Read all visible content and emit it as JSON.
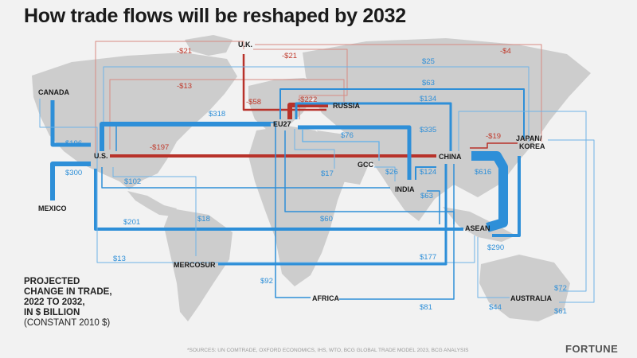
{
  "title": "How trade flows will be reshaped by 2032",
  "legend": {
    "line1": "PROJECTED",
    "line2": "CHANGE IN TRADE,",
    "line3": "2022 TO 2032,",
    "line4": "IN $ BILLION",
    "line5": "(CONSTANT 2010 $)"
  },
  "source": "*SOURCES: UN COMTRADE, OXFORD ECONOMICS, IHS, WTO, BCG GLOBAL TRADE MODEL 2023, BCG ANALYSIS",
  "brand": "FORTUNE",
  "colors": {
    "growth": "#2e8fd8",
    "decline": "#b8322a"
  },
  "nodes": {
    "canada": "CANADA",
    "us": "U.S.",
    "mexico": "MEXICO",
    "uk": "U.K.",
    "eu27": "EU27",
    "russia": "RUSSIA",
    "gcc": "GCC",
    "india": "INDIA",
    "china": "CHINA",
    "japan_korea_1": "JAPAN/",
    "japan_korea_2": "KOREA",
    "asean": "ASEAN",
    "mercosur": "MERCOSUR",
    "africa": "AFRICA",
    "australia": "AUSTRALIA"
  },
  "flows": [
    {
      "from": "U.K.",
      "to": "U.S.",
      "value": "-$21"
    },
    {
      "from": "U.K.",
      "to": "EU27",
      "value": "-$21"
    },
    {
      "from": "U.K.",
      "to": "JAPAN/KOREA",
      "value": "-$4"
    },
    {
      "from": "U.S.",
      "to": "JAPAN/KOREA",
      "value": "$25"
    },
    {
      "from": "U.S.",
      "to": "RUSSIA",
      "value": "-$13"
    },
    {
      "from": "U.K.",
      "to": "RUSSIA",
      "value": "-$58"
    },
    {
      "from": "EU27",
      "to": "RUSSIA",
      "value": "-$222"
    },
    {
      "from": "EU27",
      "to": "JAPAN/KOREA",
      "value": "$63"
    },
    {
      "from": "EU27",
      "to": "CHINA",
      "value": "$134"
    },
    {
      "from": "U.S.",
      "to": "EU27",
      "value": "$318"
    },
    {
      "from": "EU27",
      "to": "INDIA",
      "value": "$335"
    },
    {
      "from": "CANADA",
      "to": "U.S.",
      "value": "$196"
    },
    {
      "from": "MEXICO",
      "to": "U.S.",
      "value": "$300"
    },
    {
      "from": "U.S.",
      "to": "CHINA",
      "value": "-$197"
    },
    {
      "from": "EU27",
      "to": "GCC",
      "value": "$76"
    },
    {
      "from": "CHINA",
      "to": "JAPAN/KOREA",
      "value": "-$19"
    },
    {
      "from": "CHINA",
      "to": "ASEAN",
      "value": "$616"
    },
    {
      "from": "EU27",
      "to": "AFRICA",
      "value": "$17"
    },
    {
      "from": "GCC",
      "to": "INDIA",
      "value": "$26"
    },
    {
      "from": "INDIA",
      "to": "CHINA",
      "value": "$124"
    },
    {
      "from": "U.S.",
      "to": "INDIA",
      "value": "$102"
    },
    {
      "from": "INDIA",
      "to": "ASEAN",
      "value": "$63"
    },
    {
      "from": "U.S.",
      "to": "ASEAN",
      "value": "$201"
    },
    {
      "from": "EU27",
      "to": "ASEAN",
      "value": "$60"
    },
    {
      "from": "ASEAN",
      "to": "JAPAN/KOREA",
      "value": "$290"
    },
    {
      "from": "U.S.",
      "to": "MERCOSUR",
      "value": "$18"
    },
    {
      "from": "CANADA",
      "to": "ASEAN",
      "value": "$13"
    },
    {
      "from": "MERCOSUR",
      "to": "CHINA",
      "value": "$177"
    },
    {
      "from": "AFRICA",
      "to": "U.S.",
      "value": "$92"
    },
    {
      "from": "AFRICA",
      "to": "CHINA",
      "value": "$81"
    },
    {
      "from": "AUSTRALIA",
      "to": "JAPAN/KOREA",
      "value": "$72"
    },
    {
      "from": "AUSTRALIA",
      "to": "CHINA",
      "value": "$61"
    },
    {
      "from": "AUSTRALIA",
      "to": "ASEAN",
      "value": "$44"
    }
  ]
}
